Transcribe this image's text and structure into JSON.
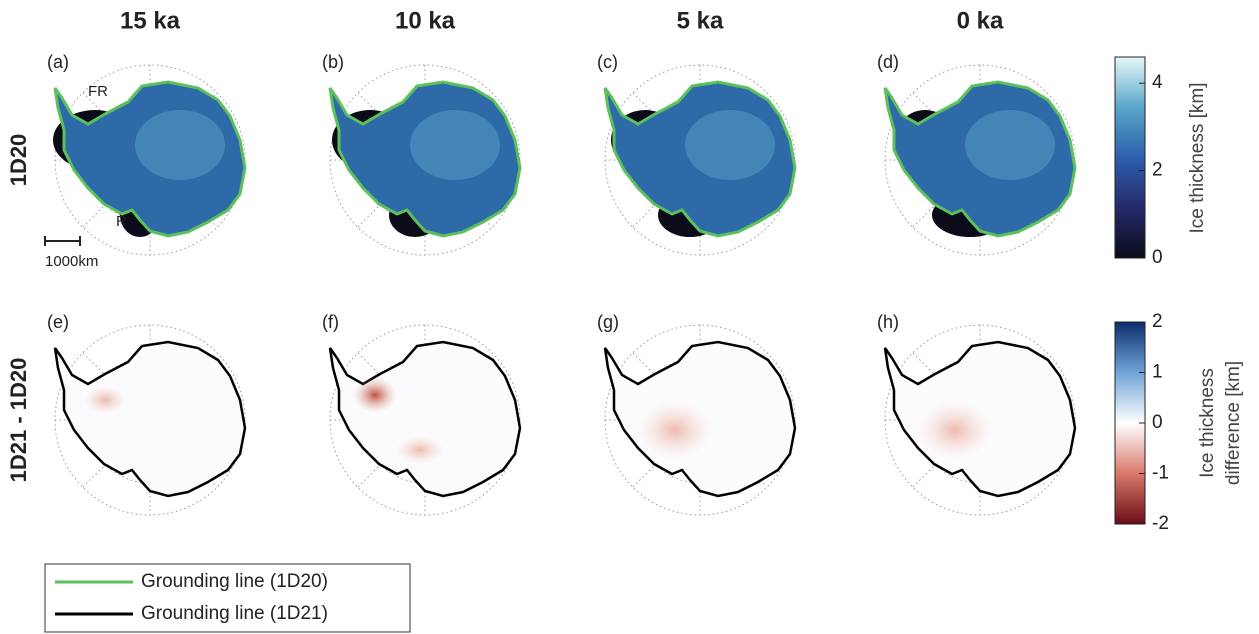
{
  "columns": [
    "15 ka",
    "10 ka",
    "5 ka",
    "0 ka"
  ],
  "rows": [
    "1D20",
    "1D21 - 1D20"
  ],
  "panels": [
    "(a)",
    "(b)",
    "(c)",
    "(d)",
    "(e)",
    "(f)",
    "(g)",
    "(h)"
  ],
  "annotations": {
    "fr": "FR",
    "r": "R",
    "scale": "1000km"
  },
  "colorbars": [
    {
      "label": [
        "Ice thickness [km]"
      ],
      "lim": [
        0,
        4.6
      ],
      "ticks": [
        0,
        2,
        4
      ]
    },
    {
      "label": [
        "Ice thickness",
        "difference [km]"
      ],
      "lim": [
        -2,
        2
      ],
      "ticks": [
        -2,
        -1,
        0,
        1,
        2
      ]
    }
  ],
  "legend": [
    {
      "label": "Grounding line (1D20)",
      "color": "#5cc05c"
    },
    {
      "label": "Grounding line (1D21)",
      "color": "#000000"
    }
  ]
}
